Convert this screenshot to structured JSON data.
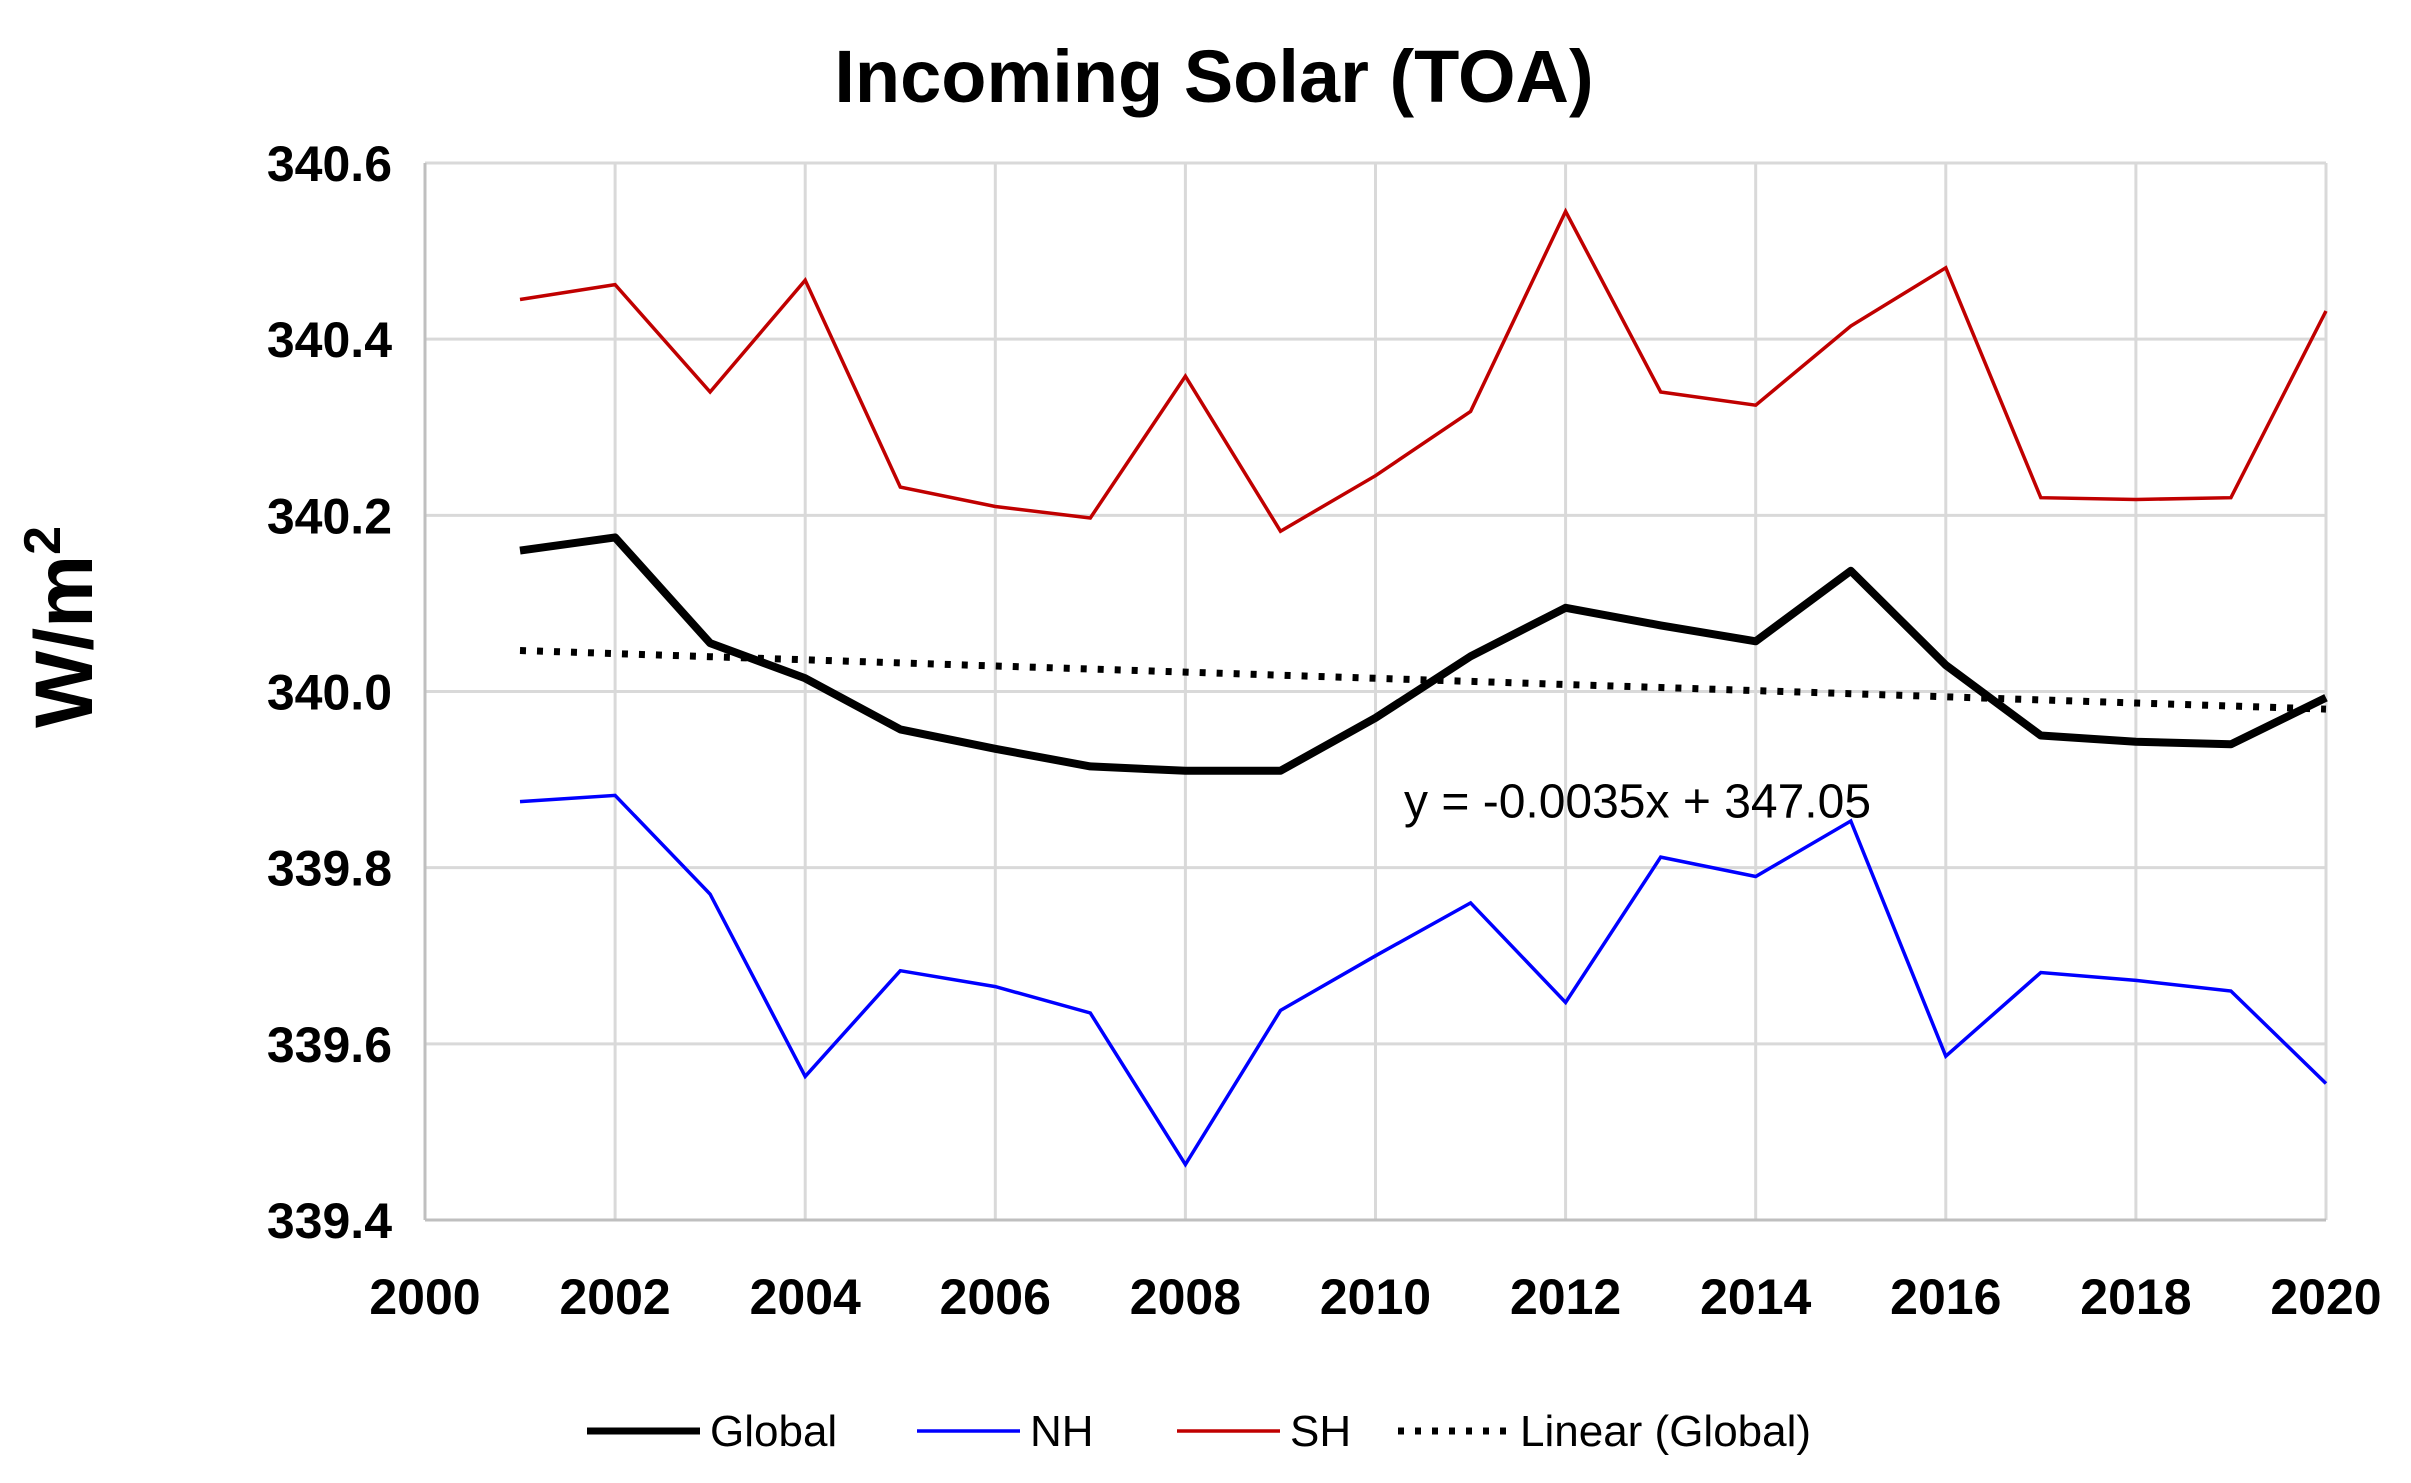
{
  "chart_data": {
    "type": "line",
    "title": "Incoming Solar (TOA)",
    "xlabel": "",
    "ylabel": "W/m",
    "ylabel_superscript": "2",
    "xlim": [
      2000,
      2020
    ],
    "ylim": [
      339.4,
      340.6
    ],
    "x_ticks": [
      2000,
      2002,
      2004,
      2006,
      2008,
      2010,
      2012,
      2014,
      2016,
      2018,
      2020
    ],
    "y_ticks": [
      339.4,
      339.6,
      339.8,
      340.0,
      340.2,
      340.4,
      340.6
    ],
    "x_tick_labels": [
      "2000",
      "2002",
      "2004",
      "2006",
      "2008",
      "2010",
      "2012",
      "2014",
      "2016",
      "2018",
      "2020"
    ],
    "y_tick_labels": [
      "339.4",
      "339.6",
      "339.8",
      "340.0",
      "340.2",
      "340.4",
      "340.6"
    ],
    "grid": true,
    "x": [
      2001,
      2002,
      2003,
      2004,
      2005,
      2006,
      2007,
      2008,
      2009,
      2010,
      2011,
      2012,
      2013,
      2014,
      2015,
      2016,
      2017,
      2018,
      2019,
      2020
    ],
    "series": [
      {
        "name": "Global",
        "color": "#000000",
        "style": "solid-thick",
        "values": [
          340.16,
          340.175,
          340.055,
          340.015,
          339.957,
          339.935,
          339.915,
          339.91,
          339.91,
          339.97,
          340.04,
          340.095,
          340.075,
          340.057,
          340.137,
          340.03,
          339.95,
          339.943,
          339.94,
          339.993
        ]
      },
      {
        "name": "NH",
        "color": "#0000ff",
        "style": "solid",
        "values": [
          339.875,
          339.882,
          339.77,
          339.563,
          339.683,
          339.665,
          339.635,
          339.463,
          339.638,
          339.7,
          339.76,
          339.647,
          339.812,
          339.79,
          339.853,
          339.586,
          339.681,
          339.672,
          339.66,
          339.555
        ]
      },
      {
        "name": "SH",
        "color": "#c00000",
        "style": "solid",
        "values": [
          340.445,
          340.462,
          340.34,
          340.467,
          340.232,
          340.21,
          340.197,
          340.358,
          340.182,
          340.245,
          340.318,
          340.545,
          340.34,
          340.325,
          340.415,
          340.481,
          340.22,
          340.218,
          340.22,
          340.432
        ]
      },
      {
        "name": "Linear (Global)",
        "color": "#000000",
        "style": "dotted",
        "values": [
          340.0465,
          340.043,
          340.0395,
          340.036,
          340.0325,
          340.029,
          340.0255,
          340.022,
          340.0185,
          340.015,
          340.0115,
          340.008,
          340.0045,
          340.001,
          339.9975,
          339.994,
          339.9905,
          339.987,
          339.9835,
          339.98
        ]
      }
    ],
    "annotations": [
      {
        "text": "y = -0.0035x + 347.05",
        "x": 2010.3,
        "y": 339.9
      }
    ],
    "legend": {
      "position": "bottom-center",
      "entries": [
        "Global",
        "NH",
        "SH",
        "Linear (Global)"
      ]
    }
  }
}
